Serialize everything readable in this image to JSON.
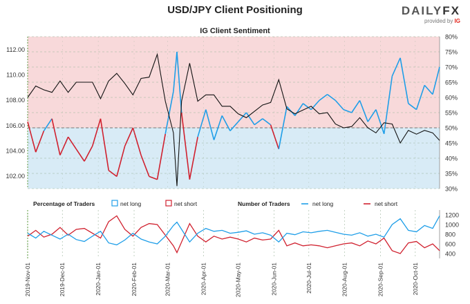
{
  "header": {
    "title": "USD/JPY Client Positioning",
    "logo_text_a": "DAILY",
    "logo_text_b": "FX",
    "provided_by": "provided by",
    "provider": "IG"
  },
  "colors": {
    "long_blue": "#1e9ee8",
    "short_red": "#d0202e",
    "price_black": "#111111",
    "upper_shade": "#f8d9da",
    "lower_shade": "#d8ebf6",
    "grid": "#9ab39a"
  },
  "chart_data": [
    {
      "type": "line",
      "title": "IG Client Sentiment",
      "x_range": [
        "2019-11-01",
        "2020-10-22"
      ],
      "y_left_ticks": [
        "102.00",
        "104.00",
        "106.00",
        "108.00",
        "110.00",
        "112.00"
      ],
      "y_left_range": [
        101.0,
        113.0
      ],
      "y_right_ticks": [
        "30%",
        "35%",
        "40%",
        "45%",
        "50%",
        "55%",
        "60%",
        "65%",
        "70%",
        "75%",
        "80%"
      ],
      "y_right_range": [
        30,
        80
      ],
      "shading": {
        "above_50": "net short zone",
        "below_50": "net long zone"
      },
      "series": [
        {
          "name": "USD/JPY",
          "axis": "left",
          "points": [
            [
              "2019-11-01",
              108.2
            ],
            [
              "2019-11-08",
              109.1
            ],
            [
              "2019-11-15",
              108.8
            ],
            [
              "2019-11-22",
              108.6
            ],
            [
              "2019-11-29",
              109.5
            ],
            [
              "2019-12-06",
              108.6
            ],
            [
              "2019-12-13",
              109.4
            ],
            [
              "2019-12-20",
              109.4
            ],
            [
              "2019-12-27",
              109.4
            ],
            [
              "2020-01-03",
              108.1
            ],
            [
              "2020-01-10",
              109.5
            ],
            [
              "2020-01-17",
              110.1
            ],
            [
              "2020-01-24",
              109.3
            ],
            [
              "2020-01-31",
              108.4
            ],
            [
              "2020-02-07",
              109.7
            ],
            [
              "2020-02-14",
              109.8
            ],
            [
              "2020-02-21",
              111.6
            ],
            [
              "2020-02-28",
              107.9
            ],
            [
              "2020-03-06",
              105.4
            ],
            [
              "2020-03-09",
              101.2
            ],
            [
              "2020-03-13",
              107.9
            ],
            [
              "2020-03-20",
              110.9
            ],
            [
              "2020-03-27",
              107.9
            ],
            [
              "2020-04-03",
              108.4
            ],
            [
              "2020-04-10",
              108.4
            ],
            [
              "2020-04-17",
              107.5
            ],
            [
              "2020-04-24",
              107.5
            ],
            [
              "2020-05-01",
              106.9
            ],
            [
              "2020-05-08",
              106.6
            ],
            [
              "2020-05-15",
              107.1
            ],
            [
              "2020-05-22",
              107.6
            ],
            [
              "2020-05-29",
              107.8
            ],
            [
              "2020-06-05",
              109.6
            ],
            [
              "2020-06-12",
              107.3
            ],
            [
              "2020-06-19",
              106.9
            ],
            [
              "2020-06-26",
              107.2
            ],
            [
              "2020-07-03",
              107.5
            ],
            [
              "2020-07-10",
              106.9
            ],
            [
              "2020-07-17",
              107.0
            ],
            [
              "2020-07-24",
              106.1
            ],
            [
              "2020-07-31",
              105.8
            ],
            [
              "2020-08-07",
              105.9
            ],
            [
              "2020-08-14",
              106.6
            ],
            [
              "2020-08-21",
              105.8
            ],
            [
              "2020-08-28",
              105.4
            ],
            [
              "2020-09-04",
              106.2
            ],
            [
              "2020-09-11",
              106.1
            ],
            [
              "2020-09-18",
              104.6
            ],
            [
              "2020-09-25",
              105.6
            ],
            [
              "2020-10-02",
              105.3
            ],
            [
              "2020-10-09",
              105.6
            ],
            [
              "2020-10-16",
              105.4
            ],
            [
              "2020-10-22",
              104.8
            ]
          ]
        },
        {
          "name": "net long %",
          "axis": "right",
          "points": [
            [
              "2019-11-01",
              52
            ],
            [
              "2019-11-08",
              42
            ],
            [
              "2019-11-15",
              49
            ],
            [
              "2019-11-22",
              53
            ],
            [
              "2019-11-29",
              41
            ],
            [
              "2019-12-06",
              47
            ],
            [
              "2019-12-13",
              43
            ],
            [
              "2019-12-20",
              39
            ],
            [
              "2019-12-27",
              44
            ],
            [
              "2020-01-03",
              53
            ],
            [
              "2020-01-10",
              36
            ],
            [
              "2020-01-17",
              34
            ],
            [
              "2020-01-24",
              44
            ],
            [
              "2020-01-31",
              50
            ],
            [
              "2020-02-07",
              41
            ],
            [
              "2020-02-14",
              34
            ],
            [
              "2020-02-21",
              33
            ],
            [
              "2020-02-28",
              48
            ],
            [
              "2020-03-06",
              62
            ],
            [
              "2020-03-09",
              75
            ],
            [
              "2020-03-13",
              55
            ],
            [
              "2020-03-20",
              33
            ],
            [
              "2020-03-27",
              47
            ],
            [
              "2020-04-03",
              56
            ],
            [
              "2020-04-10",
              46
            ],
            [
              "2020-04-17",
              54
            ],
            [
              "2020-04-24",
              49
            ],
            [
              "2020-05-01",
              52
            ],
            [
              "2020-05-08",
              55
            ],
            [
              "2020-05-15",
              51
            ],
            [
              "2020-05-22",
              53
            ],
            [
              "2020-05-29",
              51
            ],
            [
              "2020-06-05",
              43
            ],
            [
              "2020-06-12",
              57
            ],
            [
              "2020-06-19",
              54
            ],
            [
              "2020-06-26",
              58
            ],
            [
              "2020-07-03",
              56
            ],
            [
              "2020-07-10",
              59
            ],
            [
              "2020-07-17",
              61
            ],
            [
              "2020-07-24",
              59
            ],
            [
              "2020-07-31",
              56
            ],
            [
              "2020-08-07",
              55
            ],
            [
              "2020-08-14",
              59
            ],
            [
              "2020-08-21",
              52
            ],
            [
              "2020-08-28",
              56
            ],
            [
              "2020-09-04",
              48
            ],
            [
              "2020-09-11",
              67
            ],
            [
              "2020-09-18",
              73
            ],
            [
              "2020-09-25",
              58
            ],
            [
              "2020-10-02",
              56
            ],
            [
              "2020-10-09",
              64
            ],
            [
              "2020-10-16",
              61
            ],
            [
              "2020-10-22",
              70
            ]
          ]
        }
      ]
    },
    {
      "type": "line",
      "legend": {
        "percentage_label": "Percentage of Traders",
        "pct_long": "net long",
        "pct_short": "net short",
        "number_label": "Number of Traders",
        "num_long": "net long",
        "num_short": "net short"
      },
      "y_right_ticks": [
        "400",
        "600",
        "800",
        "1000",
        "1200"
      ],
      "y_range": [
        300,
        1300
      ],
      "x_tick_labels": [
        "2019-Nov-01",
        "2019-Dec-01",
        "2020-Jan-01",
        "2020-Feb-01",
        "2020-Mar-01",
        "2020-Apr-01",
        "2020-May-01",
        "2020-Jun-01",
        "2020-Jul-01",
        "2020-Aug-01",
        "2020-Sep-01",
        "2020-Oct-01"
      ],
      "x_tick_dates": [
        "2019-11-01",
        "2019-12-01",
        "2020-01-01",
        "2020-02-01",
        "2020-03-01",
        "2020-04-01",
        "2020-05-01",
        "2020-06-01",
        "2020-07-01",
        "2020-08-01",
        "2020-09-01",
        "2020-10-01"
      ],
      "series": [
        {
          "name": "net long",
          "points": [
            [
              "2019-11-01",
              820
            ],
            [
              "2019-11-08",
              720
            ],
            [
              "2019-11-15",
              860
            ],
            [
              "2019-11-22",
              780
            ],
            [
              "2019-11-29",
              700
            ],
            [
              "2019-12-06",
              800
            ],
            [
              "2019-12-13",
              690
            ],
            [
              "2019-12-20",
              650
            ],
            [
              "2019-12-27",
              760
            ],
            [
              "2020-01-03",
              860
            ],
            [
              "2020-01-10",
              620
            ],
            [
              "2020-01-17",
              580
            ],
            [
              "2020-01-24",
              680
            ],
            [
              "2020-01-31",
              820
            ],
            [
              "2020-02-07",
              700
            ],
            [
              "2020-02-14",
              640
            ],
            [
              "2020-02-21",
              600
            ],
            [
              "2020-02-28",
              760
            ],
            [
              "2020-03-06",
              980
            ],
            [
              "2020-03-09",
              1050
            ],
            [
              "2020-03-13",
              900
            ],
            [
              "2020-03-20",
              640
            ],
            [
              "2020-03-27",
              820
            ],
            [
              "2020-04-03",
              920
            ],
            [
              "2020-04-10",
              860
            ],
            [
              "2020-04-17",
              880
            ],
            [
              "2020-04-24",
              820
            ],
            [
              "2020-05-01",
              840
            ],
            [
              "2020-05-08",
              870
            ],
            [
              "2020-05-15",
              800
            ],
            [
              "2020-05-22",
              830
            ],
            [
              "2020-05-29",
              780
            ],
            [
              "2020-06-05",
              640
            ],
            [
              "2020-06-12",
              820
            ],
            [
              "2020-06-19",
              790
            ],
            [
              "2020-06-26",
              850
            ],
            [
              "2020-07-03",
              830
            ],
            [
              "2020-07-10",
              860
            ],
            [
              "2020-07-17",
              880
            ],
            [
              "2020-07-24",
              840
            ],
            [
              "2020-07-31",
              800
            ],
            [
              "2020-08-07",
              780
            ],
            [
              "2020-08-14",
              830
            ],
            [
              "2020-08-21",
              760
            ],
            [
              "2020-08-28",
              800
            ],
            [
              "2020-09-04",
              740
            ],
            [
              "2020-09-11",
              1000
            ],
            [
              "2020-09-18",
              1120
            ],
            [
              "2020-09-25",
              880
            ],
            [
              "2020-10-02",
              850
            ],
            [
              "2020-10-09",
              980
            ],
            [
              "2020-10-16",
              920
            ],
            [
              "2020-10-22",
              1180
            ]
          ]
        },
        {
          "name": "net short",
          "points": [
            [
              "2019-11-01",
              760
            ],
            [
              "2019-11-08",
              880
            ],
            [
              "2019-11-15",
              740
            ],
            [
              "2019-11-22",
              800
            ],
            [
              "2019-11-29",
              940
            ],
            [
              "2019-12-06",
              780
            ],
            [
              "2019-12-13",
              900
            ],
            [
              "2019-12-20",
              920
            ],
            [
              "2019-12-27",
              820
            ],
            [
              "2020-01-03",
              720
            ],
            [
              "2020-01-10",
              1060
            ],
            [
              "2020-01-17",
              1180
            ],
            [
              "2020-01-24",
              900
            ],
            [
              "2020-01-31",
              760
            ],
            [
              "2020-02-07",
              940
            ],
            [
              "2020-02-14",
              1020
            ],
            [
              "2020-02-21",
              1000
            ],
            [
              "2020-02-28",
              780
            ],
            [
              "2020-03-06",
              560
            ],
            [
              "2020-03-09",
              420
            ],
            [
              "2020-03-13",
              640
            ],
            [
              "2020-03-20",
              1020
            ],
            [
              "2020-03-27",
              760
            ],
            [
              "2020-04-03",
              640
            ],
            [
              "2020-04-10",
              760
            ],
            [
              "2020-04-17",
              700
            ],
            [
              "2020-04-24",
              740
            ],
            [
              "2020-05-01",
              700
            ],
            [
              "2020-05-08",
              640
            ],
            [
              "2020-05-15",
              720
            ],
            [
              "2020-05-22",
              680
            ],
            [
              "2020-05-29",
              700
            ],
            [
              "2020-06-05",
              880
            ],
            [
              "2020-06-12",
              560
            ],
            [
              "2020-06-19",
              620
            ],
            [
              "2020-06-26",
              560
            ],
            [
              "2020-07-03",
              580
            ],
            [
              "2020-07-10",
              560
            ],
            [
              "2020-07-17",
              520
            ],
            [
              "2020-07-24",
              560
            ],
            [
              "2020-07-31",
              600
            ],
            [
              "2020-08-07",
              620
            ],
            [
              "2020-08-14",
              560
            ],
            [
              "2020-08-21",
              660
            ],
            [
              "2020-08-28",
              600
            ],
            [
              "2020-09-04",
              720
            ],
            [
              "2020-09-11",
              460
            ],
            [
              "2020-09-18",
              400
            ],
            [
              "2020-09-25",
              620
            ],
            [
              "2020-10-02",
              650
            ],
            [
              "2020-10-09",
              520
            ],
            [
              "2020-10-16",
              600
            ],
            [
              "2020-10-22",
              460
            ]
          ]
        }
      ]
    }
  ]
}
